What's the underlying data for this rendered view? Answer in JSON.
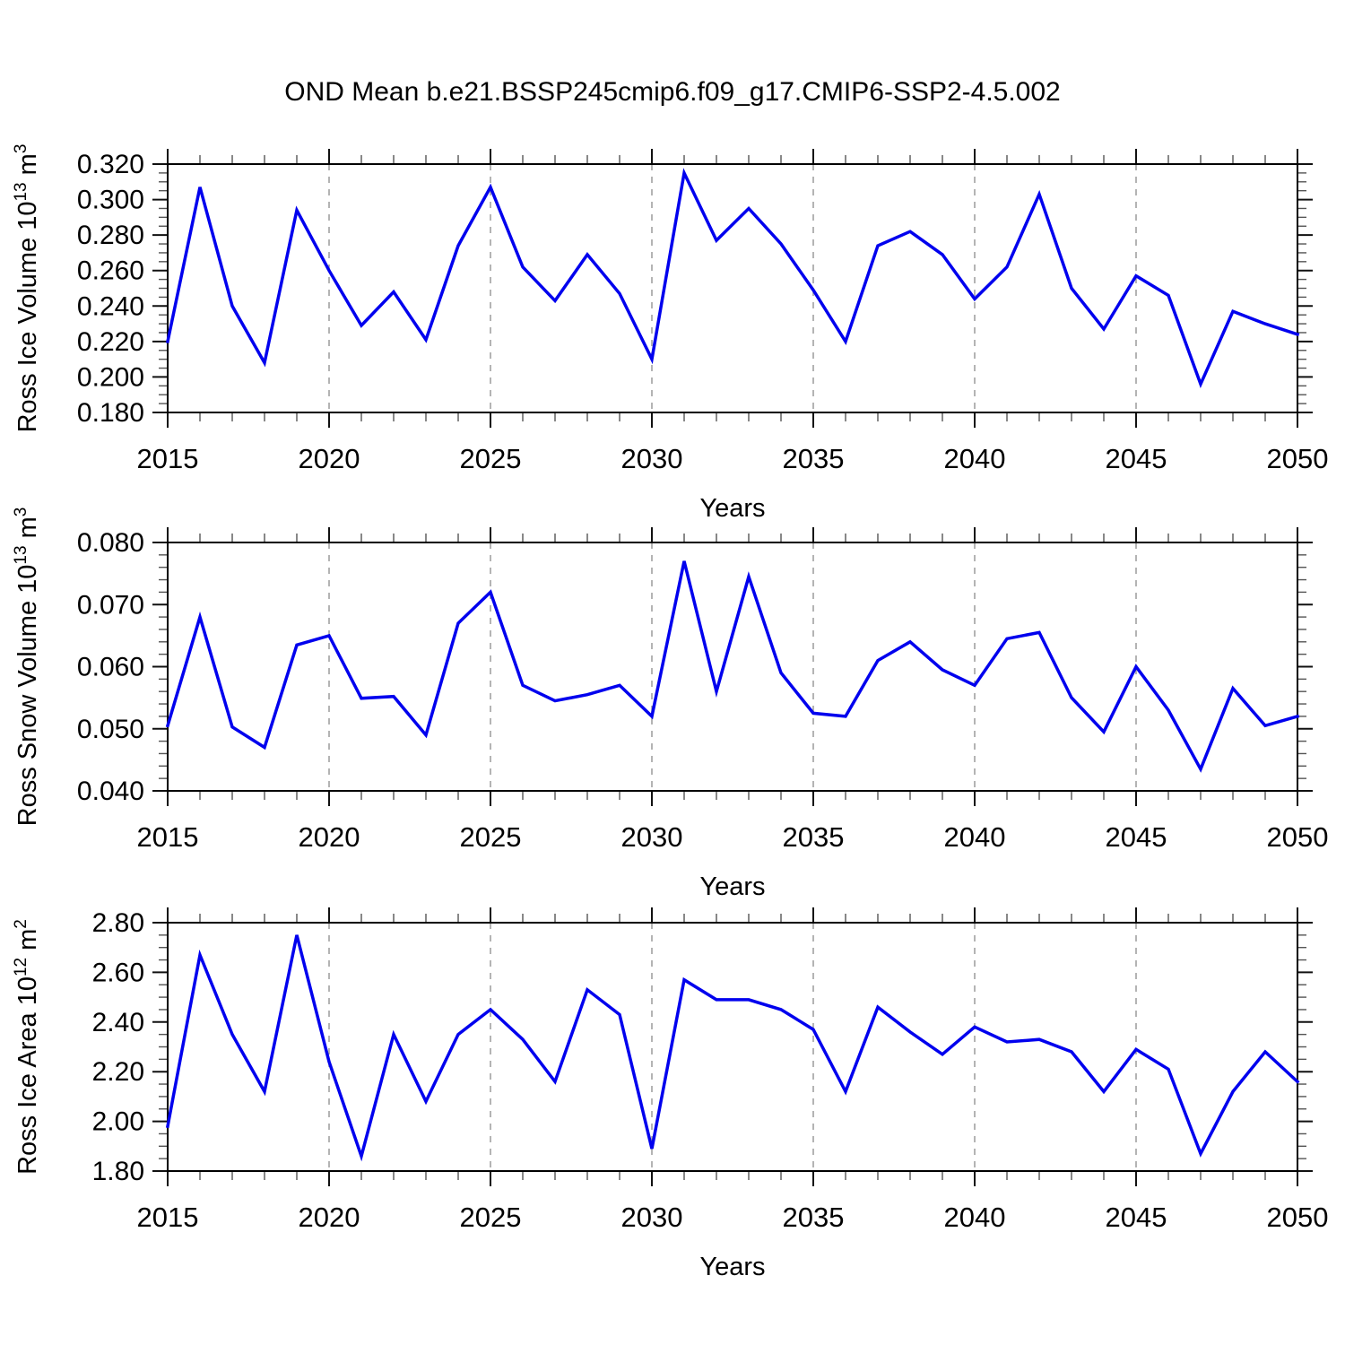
{
  "title": "OND Mean b.e21.BSSP245cmip6.f09_g17.CMIP6-SSP2-4.5.002",
  "line_color": "#0000EE",
  "gridline_color": "#9c9c9c",
  "frame_color": "#000000",
  "x_axis": {
    "label": "Years",
    "min": 2015,
    "max": 2050,
    "tick_years": [
      2015,
      2020,
      2025,
      2030,
      2035,
      2040,
      2045,
      2050
    ],
    "tick_labels": [
      "2015",
      "2020",
      "2025",
      "2030",
      "2035",
      "2040",
      "2045",
      "2050"
    ],
    "gridline_years": [
      2020,
      2025,
      2030,
      2035,
      2040,
      2045
    ],
    "minor_step_years": 1,
    "years": [
      2015,
      2016,
      2017,
      2018,
      2019,
      2020,
      2021,
      2022,
      2023,
      2024,
      2025,
      2026,
      2027,
      2028,
      2029,
      2030,
      2031,
      2032,
      2033,
      2034,
      2035,
      2036,
      2037,
      2038,
      2039,
      2040,
      2041,
      2042,
      2043,
      2044,
      2045,
      2046,
      2047,
      2048,
      2049,
      2050
    ]
  },
  "chart_data": [
    {
      "id": "ross-ice-volume",
      "type": "line",
      "ylabel_text": "Ross Ice Volume 10^13 m^3",
      "ylabel_segments": [
        {
          "t": "Ross Ice Volume 10"
        },
        {
          "t": "13",
          "sup": true
        },
        {
          "t": " m"
        },
        {
          "t": "3",
          "sup": true
        }
      ],
      "ylim": [
        0.18,
        0.32
      ],
      "ytick_values": [
        0.18,
        0.2,
        0.22,
        0.24,
        0.26,
        0.28,
        0.3,
        0.32
      ],
      "ytick_labels": [
        "0.180",
        "0.200",
        "0.220",
        "0.240",
        "0.260",
        "0.280",
        "0.300",
        "0.320"
      ],
      "y_minor_step": 0.005,
      "values": [
        0.22,
        0.307,
        0.24,
        0.208,
        0.294,
        0.26,
        0.229,
        0.248,
        0.221,
        0.274,
        0.307,
        0.262,
        0.243,
        0.269,
        0.247,
        0.21,
        0.315,
        0.277,
        0.295,
        0.275,
        0.249,
        0.22,
        0.274,
        0.282,
        0.269,
        0.244,
        0.262,
        0.303,
        0.25,
        0.227,
        0.257,
        0.246,
        0.196,
        0.237,
        0.23,
        0.224
      ]
    },
    {
      "id": "ross-snow-volume",
      "type": "line",
      "ylabel_text": "Ross Snow Volume 10^13 m^3",
      "ylabel_segments": [
        {
          "t": "Ross Snow Volume 10"
        },
        {
          "t": "13",
          "sup": true
        },
        {
          "t": " m"
        },
        {
          "t": "3",
          "sup": true
        }
      ],
      "ylim": [
        0.04,
        0.08
      ],
      "ytick_values": [
        0.04,
        0.05,
        0.06,
        0.07,
        0.08
      ],
      "ytick_labels": [
        "0.040",
        "0.050",
        "0.060",
        "0.070",
        "0.080"
      ],
      "y_minor_step": 0.002,
      "values": [
        0.0505,
        0.068,
        0.0503,
        0.047,
        0.0635,
        0.065,
        0.0549,
        0.0552,
        0.049,
        0.067,
        0.072,
        0.057,
        0.0545,
        0.0555,
        0.057,
        0.052,
        0.077,
        0.056,
        0.0745,
        0.059,
        0.0525,
        0.052,
        0.061,
        0.064,
        0.0595,
        0.057,
        0.0645,
        0.0655,
        0.055,
        0.0495,
        0.06,
        0.053,
        0.0435,
        0.0565,
        0.0505,
        0.052
      ]
    },
    {
      "id": "ross-ice-area",
      "type": "line",
      "ylabel_text": "Ross Ice Area 10^12 m^2",
      "ylabel_segments": [
        {
          "t": "Ross Ice Area 10"
        },
        {
          "t": "12",
          "sup": true
        },
        {
          "t": " m"
        },
        {
          "t": "2",
          "sup": true
        }
      ],
      "ylim": [
        1.8,
        2.8
      ],
      "ytick_values": [
        1.8,
        2.0,
        2.2,
        2.4,
        2.6,
        2.8
      ],
      "ytick_labels": [
        "1.80",
        "2.00",
        "2.20",
        "2.40",
        "2.60",
        "2.80"
      ],
      "y_minor_step": 0.05,
      "values": [
        1.98,
        2.67,
        2.35,
        2.12,
        2.75,
        2.24,
        1.86,
        2.35,
        2.08,
        2.35,
        2.45,
        2.33,
        2.16,
        2.53,
        2.43,
        1.89,
        2.57,
        2.49,
        2.49,
        2.45,
        2.37,
        2.12,
        2.46,
        2.36,
        2.27,
        2.38,
        2.32,
        2.33,
        2.28,
        2.12,
        2.29,
        2.21,
        1.87,
        2.12,
        2.28,
        2.16
      ]
    }
  ]
}
